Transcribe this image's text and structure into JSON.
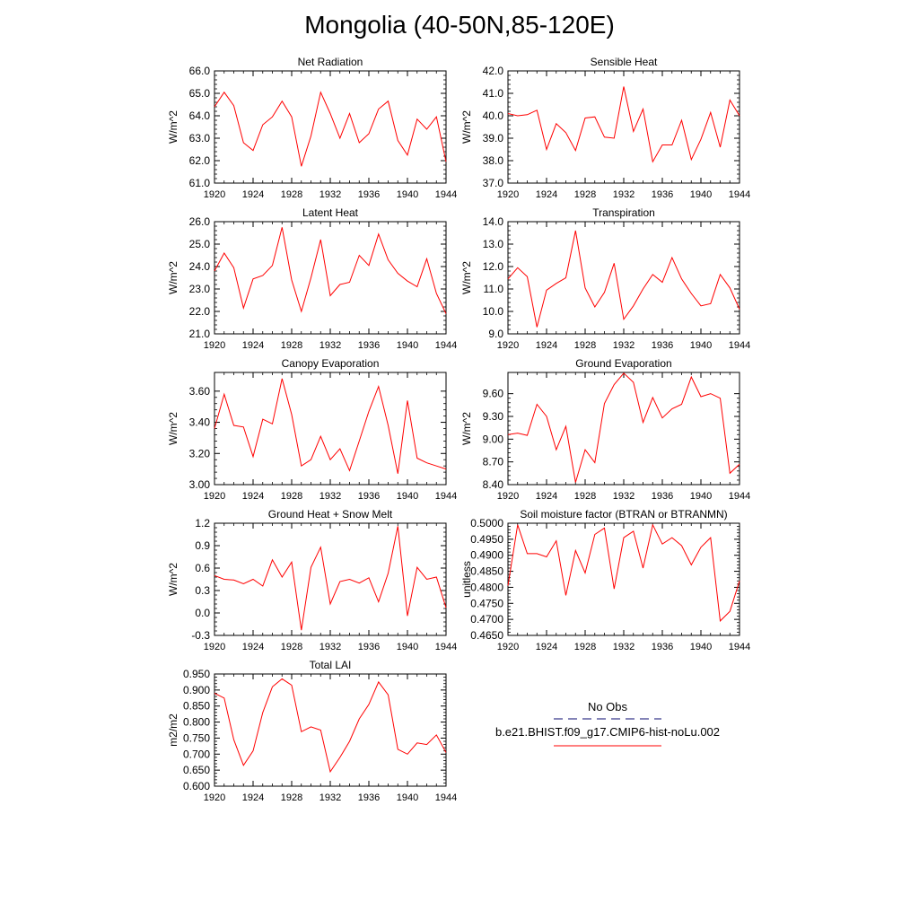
{
  "page_title": "Mongolia (40-50N,85-120E)",
  "legend": {
    "obs_label": "No Obs",
    "obs_color": "#3a3a8c",
    "model_label": "b.e21.BHIST.f09_g17.CMIP6-hist-noLu.002",
    "model_color": "#ff0000"
  },
  "chart_data": [
    {
      "type": "line",
      "title": "Net Radiation",
      "ylabel": "W/m^2",
      "xlabel": "",
      "x": [
        1920,
        1921,
        1922,
        1923,
        1924,
        1925,
        1926,
        1927,
        1928,
        1929,
        1930,
        1931,
        1932,
        1933,
        1934,
        1935,
        1936,
        1937,
        1938,
        1939,
        1940,
        1941,
        1942,
        1943,
        1944
      ],
      "series": [
        {
          "name": "b.e21.BHIST.f09_g17.CMIP6-hist-noLu.002",
          "color": "#ff0000",
          "values": [
            64.4,
            65.05,
            64.45,
            62.8,
            62.45,
            63.6,
            63.95,
            64.65,
            63.95,
            61.75,
            63.1,
            65.05,
            64.1,
            63.0,
            64.1,
            62.8,
            63.2,
            64.3,
            64.65,
            62.9,
            62.25,
            63.85,
            63.4,
            63.95,
            61.95
          ]
        }
      ],
      "xlim": [
        1920,
        1944
      ],
      "xticks": [
        "1920",
        "1924",
        "1928",
        "1932",
        "1936",
        "1940",
        "1944"
      ],
      "ylim": [
        61.0,
        66.0
      ],
      "yticks": [
        "61.0",
        "62.0",
        "63.0",
        "64.0",
        "65.0",
        "66.0"
      ],
      "grid": false
    },
    {
      "type": "line",
      "title": "Sensible Heat",
      "ylabel": "W/m^2",
      "xlabel": "",
      "x": [
        1920,
        1921,
        1922,
        1923,
        1924,
        1925,
        1926,
        1927,
        1928,
        1929,
        1930,
        1931,
        1932,
        1933,
        1934,
        1935,
        1936,
        1937,
        1938,
        1939,
        1940,
        1941,
        1942,
        1943,
        1944
      ],
      "series": [
        {
          "name": "b.e21.BHIST.f09_g17.CMIP6-hist-noLu.002",
          "color": "#ff0000",
          "values": [
            40.1,
            40.0,
            40.05,
            40.25,
            38.5,
            39.65,
            39.25,
            38.45,
            39.9,
            39.95,
            39.05,
            39.0,
            41.3,
            39.3,
            40.3,
            37.95,
            38.7,
            38.7,
            39.8,
            38.05,
            38.95,
            40.15,
            38.6,
            40.7,
            40.0
          ]
        }
      ],
      "xlim": [
        1920,
        1944
      ],
      "xticks": [
        "1920",
        "1924",
        "1928",
        "1932",
        "1936",
        "1940",
        "1944"
      ],
      "ylim": [
        37.0,
        42.0
      ],
      "yticks": [
        "37.0",
        "38.0",
        "39.0",
        "40.0",
        "41.0",
        "42.0"
      ],
      "grid": false
    },
    {
      "type": "line",
      "title": "Latent Heat",
      "ylabel": "W/m^2",
      "xlabel": "",
      "x": [
        1920,
        1921,
        1922,
        1923,
        1924,
        1925,
        1926,
        1927,
        1928,
        1929,
        1930,
        1931,
        1932,
        1933,
        1934,
        1935,
        1936,
        1937,
        1938,
        1939,
        1940,
        1941,
        1942,
        1943,
        1944
      ],
      "series": [
        {
          "name": "b.e21.BHIST.f09_g17.CMIP6-hist-noLu.002",
          "color": "#ff0000",
          "values": [
            23.8,
            24.6,
            23.95,
            22.15,
            23.45,
            23.6,
            24.05,
            25.75,
            23.4,
            22.0,
            23.5,
            25.2,
            22.7,
            23.2,
            23.3,
            24.5,
            24.05,
            25.45,
            24.3,
            23.7,
            23.35,
            23.1,
            24.35,
            22.8,
            21.9
          ]
        }
      ],
      "xlim": [
        1920,
        1944
      ],
      "xticks": [
        "1920",
        "1924",
        "1928",
        "1932",
        "1936",
        "1940",
        "1944"
      ],
      "ylim": [
        21.0,
        26.0
      ],
      "yticks": [
        "21.0",
        "22.0",
        "23.0",
        "24.0",
        "25.0",
        "26.0"
      ],
      "grid": false
    },
    {
      "type": "line",
      "title": "Transpiration",
      "ylabel": "W/m^2",
      "xlabel": "",
      "x": [
        1920,
        1921,
        1922,
        1923,
        1924,
        1925,
        1926,
        1927,
        1928,
        1929,
        1930,
        1931,
        1932,
        1933,
        1934,
        1935,
        1936,
        1937,
        1938,
        1939,
        1940,
        1941,
        1942,
        1943,
        1944
      ],
      "series": [
        {
          "name": "b.e21.BHIST.f09_g17.CMIP6-hist-noLu.002",
          "color": "#ff0000",
          "values": [
            11.45,
            11.95,
            11.55,
            9.3,
            10.95,
            11.25,
            11.5,
            13.6,
            11.05,
            10.2,
            10.85,
            12.15,
            9.65,
            10.25,
            11.0,
            11.65,
            11.3,
            12.4,
            11.45,
            10.8,
            10.25,
            10.35,
            11.65,
            11.05,
            10.1
          ]
        }
      ],
      "xlim": [
        1920,
        1944
      ],
      "xticks": [
        "1920",
        "1924",
        "1928",
        "1932",
        "1936",
        "1940",
        "1944"
      ],
      "ylim": [
        9.0,
        14.0
      ],
      "yticks": [
        "9.0",
        "10.0",
        "11.0",
        "12.0",
        "13.0",
        "14.0"
      ],
      "grid": false
    },
    {
      "type": "line",
      "title": "Canopy Evaporation",
      "ylabel": "W/m^2",
      "xlabel": "",
      "x": [
        1920,
        1921,
        1922,
        1923,
        1924,
        1925,
        1926,
        1927,
        1928,
        1929,
        1930,
        1931,
        1932,
        1933,
        1934,
        1935,
        1936,
        1937,
        1938,
        1939,
        1940,
        1941,
        1942,
        1943,
        1944
      ],
      "series": [
        {
          "name": "b.e21.BHIST.f09_g17.CMIP6-hist-noLu.002",
          "color": "#ff0000",
          "values": [
            3.36,
            3.58,
            3.38,
            3.37,
            3.18,
            3.42,
            3.39,
            3.68,
            3.45,
            3.12,
            3.16,
            3.31,
            3.16,
            3.23,
            3.09,
            3.28,
            3.47,
            3.63,
            3.38,
            3.07,
            3.54,
            3.17,
            3.14,
            3.12,
            3.1
          ]
        }
      ],
      "xlim": [
        1920,
        1944
      ],
      "xticks": [
        "1920",
        "1924",
        "1928",
        "1932",
        "1936",
        "1940",
        "1944"
      ],
      "ylim": [
        3.0,
        3.72
      ],
      "yticks": [
        "3.00",
        "3.20",
        "3.40",
        "3.60"
      ],
      "ytick_values": [
        3.0,
        3.2,
        3.4,
        3.6
      ],
      "grid": false
    },
    {
      "type": "line",
      "title": "Ground Evaporation",
      "ylabel": "W/m^2",
      "xlabel": "",
      "x": [
        1920,
        1921,
        1922,
        1923,
        1924,
        1925,
        1926,
        1927,
        1928,
        1929,
        1930,
        1931,
        1932,
        1933,
        1934,
        1935,
        1936,
        1937,
        1938,
        1939,
        1940,
        1941,
        1942,
        1943,
        1944
      ],
      "series": [
        {
          "name": "b.e21.BHIST.f09_g17.CMIP6-hist-noLu.002",
          "color": "#ff0000",
          "values": [
            9.06,
            9.08,
            9.05,
            9.46,
            9.3,
            8.86,
            9.17,
            8.43,
            8.86,
            8.69,
            9.47,
            9.72,
            9.87,
            9.75,
            9.22,
            9.55,
            9.28,
            9.4,
            9.46,
            9.82,
            9.56,
            9.6,
            9.54,
            8.55,
            8.67
          ]
        }
      ],
      "xlim": [
        1920,
        1944
      ],
      "xticks": [
        "1920",
        "1924",
        "1928",
        "1932",
        "1936",
        "1940",
        "1944"
      ],
      "ylim": [
        8.4,
        9.88
      ],
      "yticks": [
        "8.40",
        "8.70",
        "9.00",
        "9.30",
        "9.60"
      ],
      "ytick_values": [
        8.4,
        8.7,
        9.0,
        9.3,
        9.6
      ],
      "grid": false
    },
    {
      "type": "line",
      "title": "Ground Heat + Snow Melt",
      "ylabel": "W/m^2",
      "xlabel": "",
      "x": [
        1920,
        1921,
        1922,
        1923,
        1924,
        1925,
        1926,
        1927,
        1928,
        1929,
        1930,
        1931,
        1932,
        1933,
        1934,
        1935,
        1936,
        1937,
        1938,
        1939,
        1940,
        1941,
        1942,
        1943,
        1944
      ],
      "series": [
        {
          "name": "b.e21.BHIST.f09_g17.CMIP6-hist-noLu.002",
          "color": "#ff0000",
          "values": [
            0.5,
            0.45,
            0.44,
            0.39,
            0.45,
            0.36,
            0.71,
            0.48,
            0.68,
            -0.23,
            0.61,
            0.88,
            0.12,
            0.42,
            0.45,
            0.4,
            0.47,
            0.15,
            0.53,
            1.16,
            -0.04,
            0.61,
            0.45,
            0.48,
            0.07
          ]
        }
      ],
      "xlim": [
        1920,
        1944
      ],
      "xticks": [
        "1920",
        "1924",
        "1928",
        "1932",
        "1936",
        "1940",
        "1944"
      ],
      "ylim": [
        -0.3,
        1.2
      ],
      "yticks": [
        "-0.3",
        "0.0",
        "0.3",
        "0.6",
        "0.9",
        "1.2"
      ],
      "grid": false
    },
    {
      "type": "line",
      "title": "Soil moisture factor (BTRAN or BTRANMN)",
      "ylabel": "unitless",
      "xlabel": "",
      "x": [
        1920,
        1921,
        1922,
        1923,
        1924,
        1925,
        1926,
        1927,
        1928,
        1929,
        1930,
        1931,
        1932,
        1933,
        1934,
        1935,
        1936,
        1937,
        1938,
        1939,
        1940,
        1941,
        1942,
        1943,
        1944
      ],
      "series": [
        {
          "name": "b.e21.BHIST.f09_g17.CMIP6-hist-noLu.002",
          "color": "#ff0000",
          "values": [
            0.4805,
            0.4995,
            0.4905,
            0.4905,
            0.4895,
            0.4945,
            0.4775,
            0.4915,
            0.4845,
            0.4965,
            0.4985,
            0.4795,
            0.4955,
            0.4975,
            0.486,
            0.4995,
            0.4935,
            0.4955,
            0.493,
            0.487,
            0.4925,
            0.4955,
            0.4695,
            0.4725,
            0.482
          ]
        }
      ],
      "xlim": [
        1920,
        1944
      ],
      "xticks": [
        "1920",
        "1924",
        "1928",
        "1932",
        "1936",
        "1940",
        "1944"
      ],
      "ylim": [
        0.465,
        0.5
      ],
      "yticks": [
        "0.4650",
        "0.4700",
        "0.4750",
        "0.4800",
        "0.4850",
        "0.4900",
        "0.4950",
        "0.5000"
      ],
      "grid": false
    },
    {
      "type": "line",
      "title": "Total LAI",
      "ylabel": "m2/m2",
      "xlabel": "",
      "x": [
        1920,
        1921,
        1922,
        1923,
        1924,
        1925,
        1926,
        1927,
        1928,
        1929,
        1930,
        1931,
        1932,
        1933,
        1934,
        1935,
        1936,
        1937,
        1938,
        1939,
        1940,
        1941,
        1942,
        1943,
        1944
      ],
      "series": [
        {
          "name": "b.e21.BHIST.f09_g17.CMIP6-hist-noLu.002",
          "color": "#ff0000",
          "values": [
            0.89,
            0.875,
            0.745,
            0.665,
            0.71,
            0.83,
            0.91,
            0.935,
            0.915,
            0.77,
            0.785,
            0.775,
            0.645,
            0.69,
            0.74,
            0.81,
            0.855,
            0.925,
            0.885,
            0.715,
            0.7,
            0.735,
            0.73,
            0.76,
            0.705
          ]
        }
      ],
      "xlim": [
        1920,
        1944
      ],
      "xticks": [
        "1920",
        "1924",
        "1928",
        "1932",
        "1936",
        "1940",
        "1944"
      ],
      "ylim": [
        0.6,
        0.95
      ],
      "yticks": [
        "0.600",
        "0.650",
        "0.700",
        "0.750",
        "0.800",
        "0.850",
        "0.900",
        "0.950"
      ],
      "grid": false
    }
  ]
}
